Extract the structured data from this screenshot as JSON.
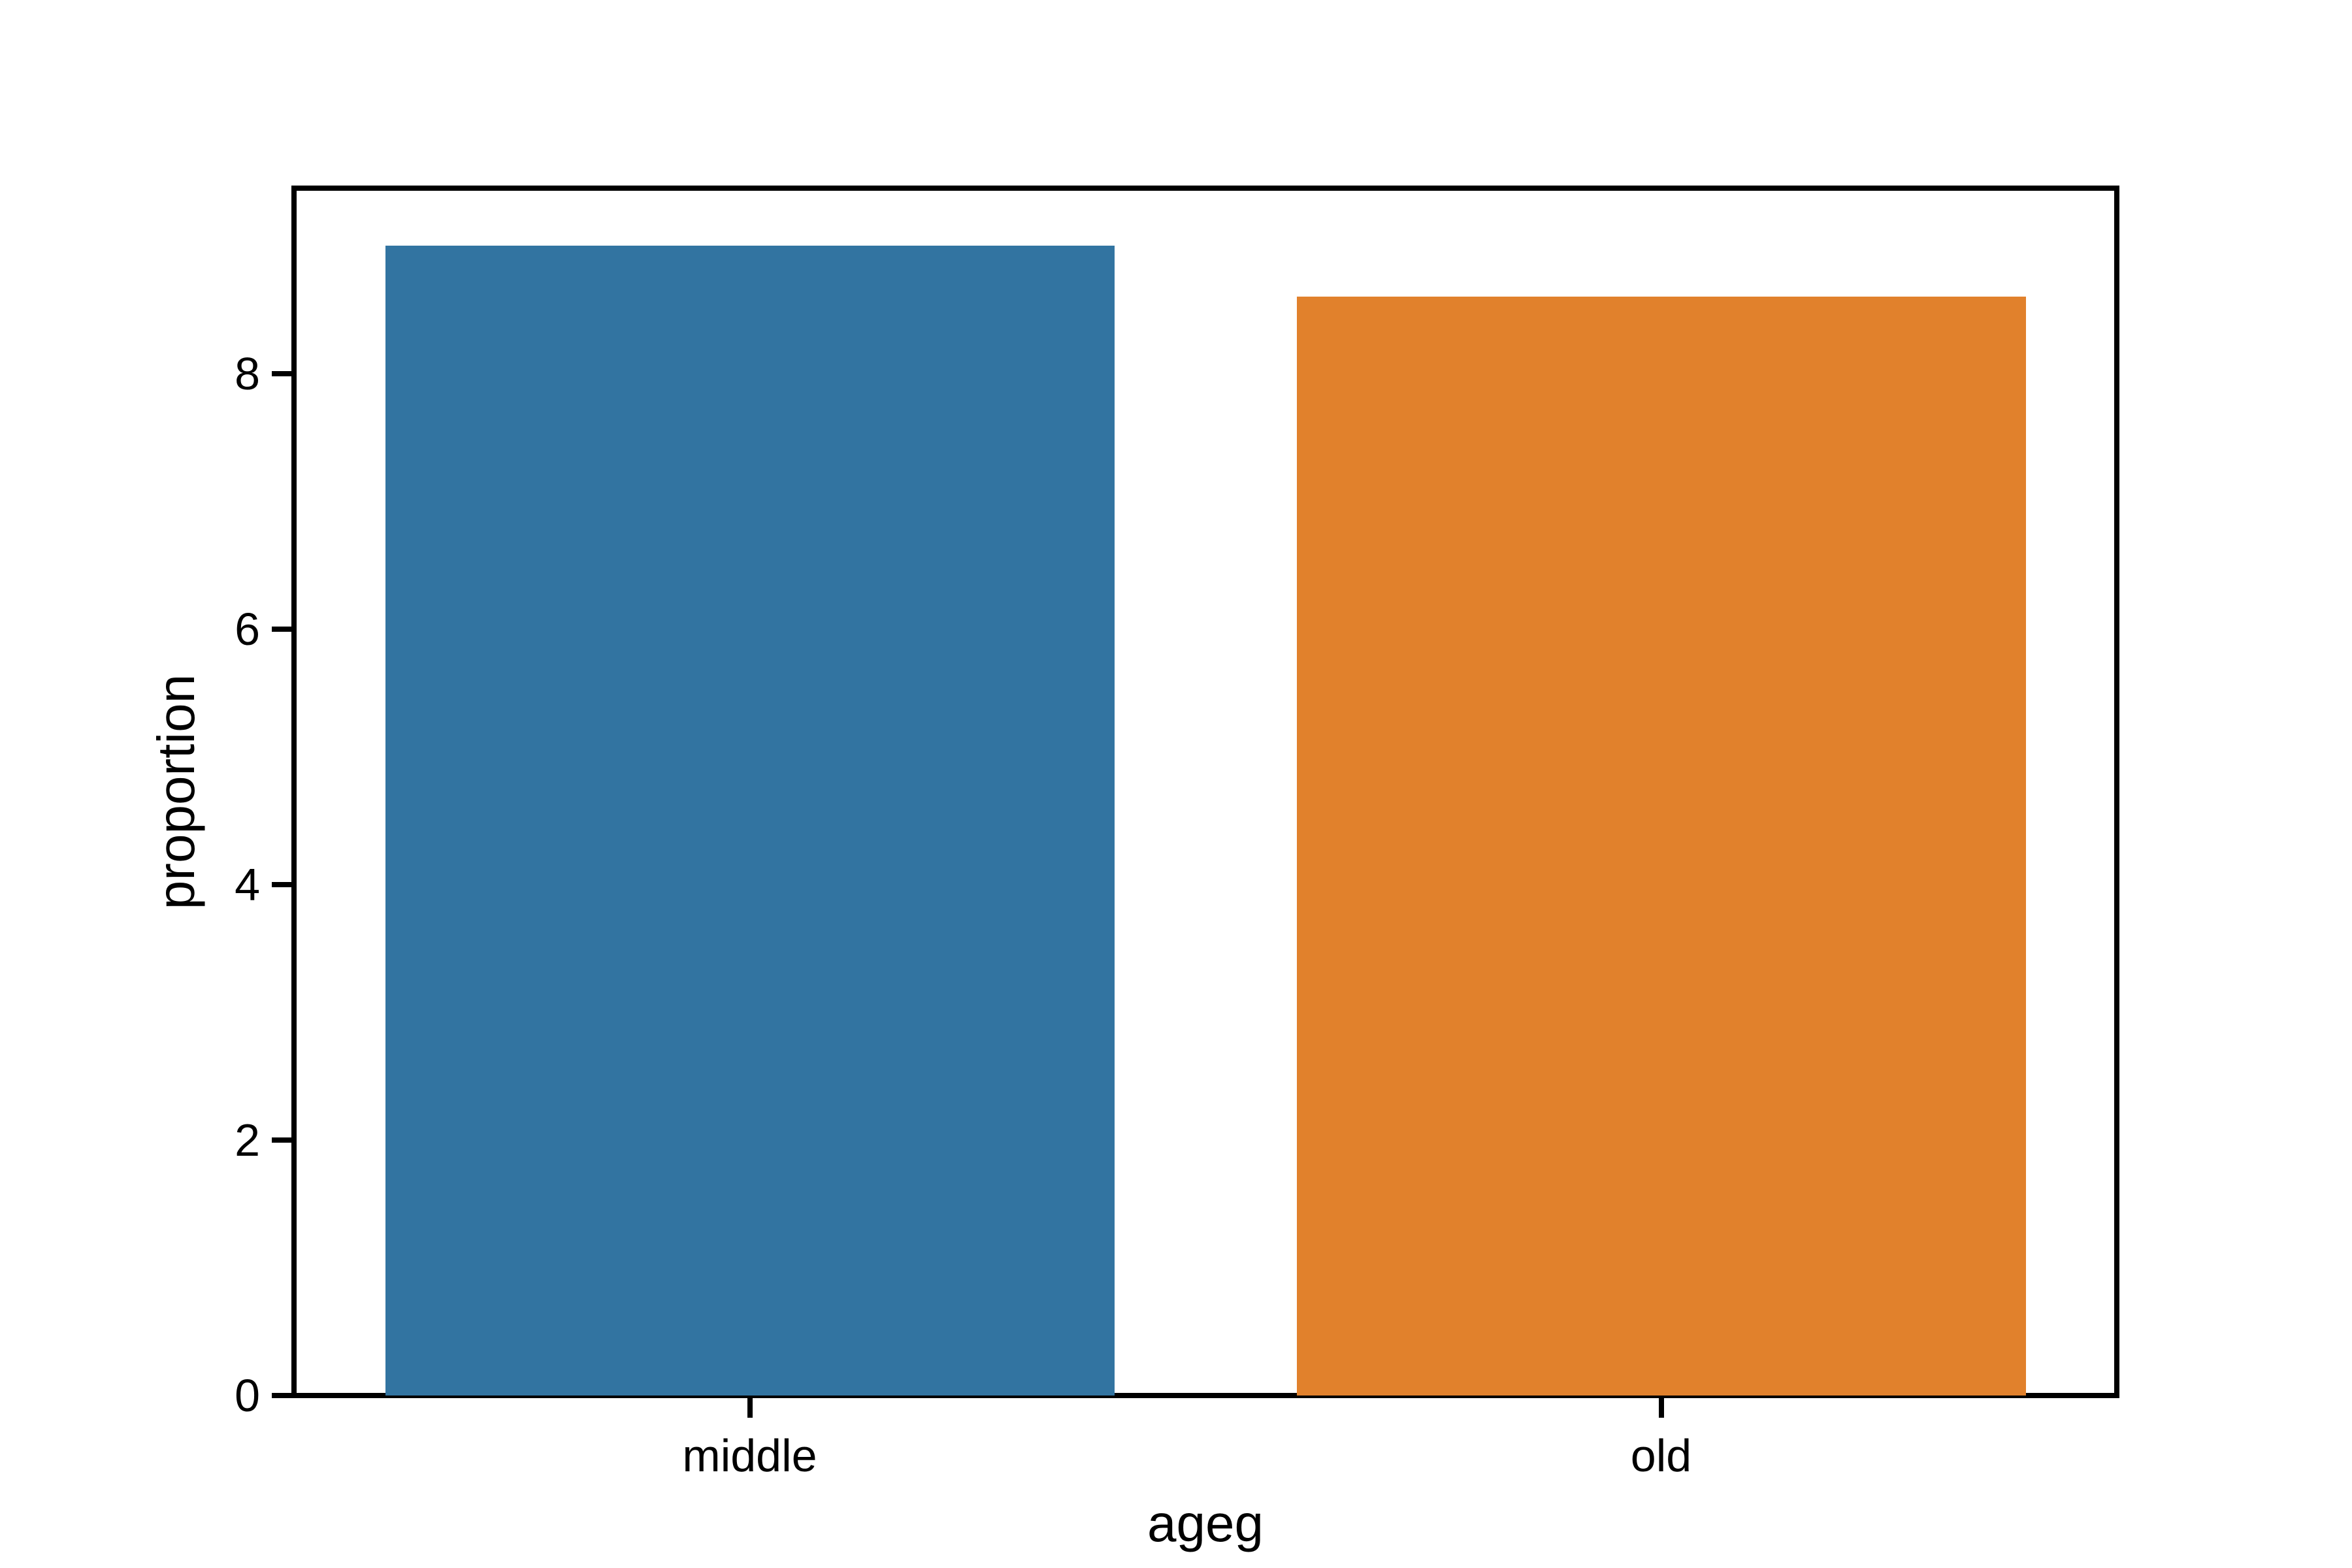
{
  "figure": {
    "background": "#ffffff",
    "title": ""
  },
  "chart_data": {
    "type": "bar",
    "categories": [
      "middle",
      "old"
    ],
    "values": [
      9.0,
      8.6
    ],
    "bar_colors": [
      "#3274a1",
      "#e1812c"
    ],
    "title": "",
    "xlabel": "ageg",
    "ylabel": "proportion",
    "yticks": [
      0,
      2,
      4,
      6,
      8
    ],
    "ylim": [
      0,
      9.45
    ],
    "bar_width_frac_of_slot": 0.8,
    "grid": false,
    "legend_position": "none",
    "spine_color": "#000000",
    "text_color": "#000000"
  }
}
